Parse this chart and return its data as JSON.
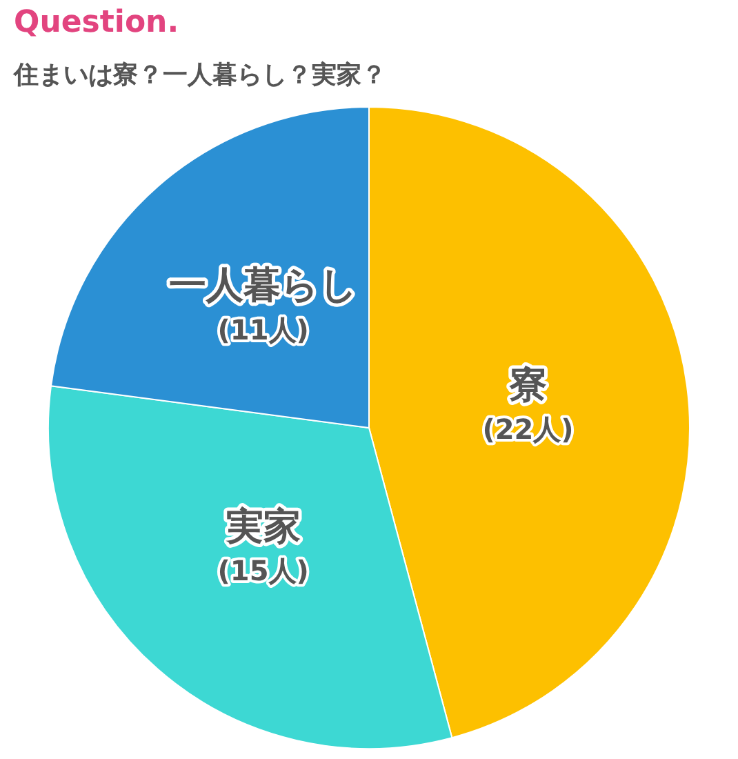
{
  "chart_data": {
    "type": "pie",
    "title": "Question.",
    "subtitle": "住まいは寮？一人暮らし？実家？",
    "categories": [
      "寮",
      "実家",
      "一人暮らし"
    ],
    "values": [
      22,
      15,
      11
    ],
    "value_labels": [
      "(22人)",
      "(15人)",
      "(11人)"
    ],
    "colors": [
      "#fdc000",
      "#3dd8d3",
      "#2b90d4"
    ],
    "legend": false
  }
}
